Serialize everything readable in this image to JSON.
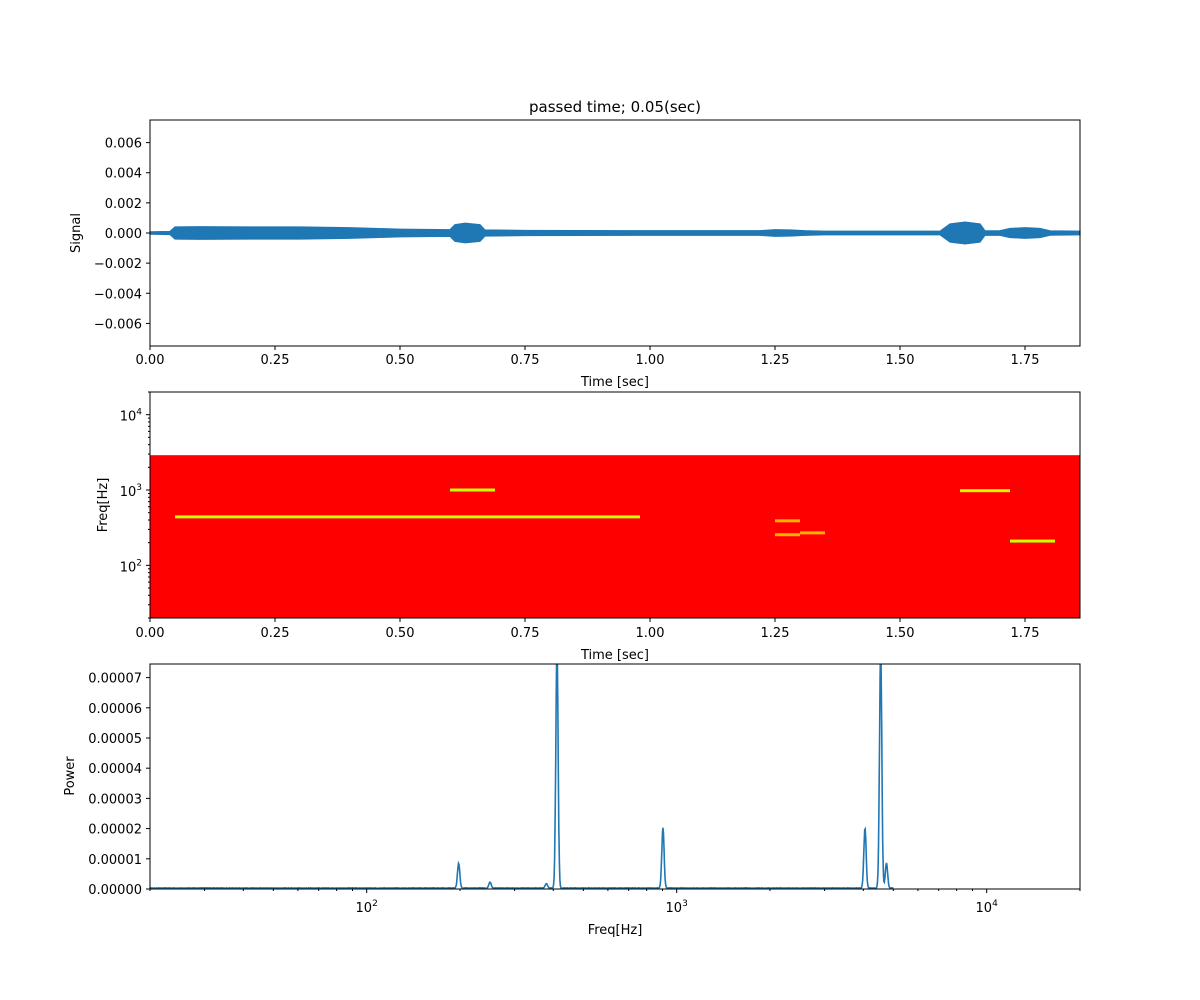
{
  "figure_title": "passed time; 0.05(sec)",
  "colors": {
    "line": "#1f77b4",
    "spectrogram_background": "#ff0000",
    "spectrogram_line_bright": "#c8ff00",
    "spectrogram_line_dim": "#ffb000"
  },
  "chart_data": [
    {
      "type": "area",
      "title": "passed time; 0.05(sec)",
      "xlabel": "Time [sec]",
      "ylabel": "Signal",
      "xlim": [
        0,
        1.86
      ],
      "ylim": [
        -0.0075,
        0.0075
      ],
      "xticks": [
        0,
        0.25,
        0.5,
        0.75,
        1.0,
        1.25,
        1.5,
        1.75
      ],
      "xtick_labels": [
        "0.00",
        "0.25",
        "0.50",
        "0.75",
        "1.00",
        "1.25",
        "1.50",
        "1.75"
      ],
      "yticks": [
        0.006,
        0.004,
        0.002,
        0,
        -0.002,
        -0.004,
        -0.006
      ],
      "ytick_labels": [
        "0.006",
        "0.004",
        "0.002",
        "0.000",
        "−0.002",
        "−0.004",
        "−0.006"
      ],
      "envelope": {
        "t": [
          0,
          0.04,
          0.05,
          0.1,
          0.2,
          0.3,
          0.4,
          0.45,
          0.5,
          0.6,
          0.61,
          0.63,
          0.66,
          0.67,
          0.75,
          1.0,
          1.22,
          1.25,
          1.28,
          1.31,
          1.35,
          1.58,
          1.6,
          1.63,
          1.66,
          1.67,
          1.7,
          1.72,
          1.75,
          1.78,
          1.8,
          1.86
        ],
        "amplitude": [
          8e-05,
          0.0001,
          0.0004,
          0.00042,
          0.0004,
          0.0004,
          0.00035,
          0.0003,
          0.00025,
          0.00022,
          0.00055,
          0.00065,
          0.00055,
          0.0002,
          0.00017,
          0.00015,
          0.00015,
          0.00022,
          0.0002,
          0.00015,
          0.00012,
          0.00012,
          0.0006,
          0.00072,
          0.0006,
          0.00014,
          0.00015,
          0.0003,
          0.00035,
          0.0003,
          0.00014,
          0.00012
        ]
      }
    },
    {
      "type": "heatmap",
      "xlabel": "Time [sec]",
      "ylabel": "Freq[Hz]",
      "xlim": [
        0,
        1.86
      ],
      "ylim": [
        20,
        20000
      ],
      "yscale": "log",
      "xticks": [
        0,
        0.25,
        0.5,
        0.75,
        1.0,
        1.25,
        1.5,
        1.75
      ],
      "xtick_labels": [
        "0.00",
        "0.25",
        "0.50",
        "0.75",
        "1.00",
        "1.25",
        "1.50",
        "1.75"
      ],
      "yticks": [
        100,
        1000,
        10000
      ],
      "ytick_labels": [
        {
          "base": "10",
          "exp": "2"
        },
        {
          "base": "10",
          "exp": "3"
        },
        {
          "base": "10",
          "exp": "4"
        }
      ],
      "freq_max_hz": 2900,
      "tones": [
        {
          "t0": 0.05,
          "t1": 0.98,
          "freq": 440,
          "level": "bright"
        },
        {
          "t0": 0.6,
          "t1": 0.69,
          "freq": 1000,
          "level": "bright"
        },
        {
          "t0": 1.25,
          "t1": 1.3,
          "freq": 390,
          "level": "dim"
        },
        {
          "t0": 1.25,
          "t1": 1.3,
          "freq": 255,
          "level": "dim"
        },
        {
          "t0": 1.3,
          "t1": 1.35,
          "freq": 270,
          "level": "dim"
        },
        {
          "t0": 1.62,
          "t1": 1.72,
          "freq": 980,
          "level": "bright"
        },
        {
          "t0": 1.72,
          "t1": 1.81,
          "freq": 210,
          "level": "bright"
        }
      ]
    },
    {
      "type": "line",
      "xlabel": "Freq[Hz]",
      "ylabel": "Power",
      "xlim": [
        20,
        20000
      ],
      "xscale": "log",
      "ylim": [
        0,
        7.45e-05
      ],
      "xticks": [
        100,
        1000,
        10000
      ],
      "xtick_labels": [
        {
          "base": "10",
          "exp": "2"
        },
        {
          "base": "10",
          "exp": "3"
        },
        {
          "base": "10",
          "exp": "4"
        }
      ],
      "yticks": [
        0,
        1e-05,
        2e-05,
        3e-05,
        4e-05,
        5e-05,
        6e-05,
        7e-05
      ],
      "ytick_labels": [
        "0.00000",
        "0.00001",
        "0.00002",
        "0.00003",
        "0.00004",
        "0.00005",
        "0.00006",
        "0.00007"
      ],
      "baseline_power": 4e-07,
      "data_end_hz": 5000,
      "peaks": [
        {
          "freq": 198,
          "power": 8.3e-06
        },
        {
          "freq": 250,
          "power": 2e-06
        },
        {
          "freq": 380,
          "power": 1.5e-06
        },
        {
          "freq": 411,
          "power": 8e-05
        },
        {
          "freq": 903,
          "power": 2e-05
        },
        {
          "freq": 4050,
          "power": 2e-05
        },
        {
          "freq": 4550,
          "power": 8e-05
        },
        {
          "freq": 4750,
          "power": 8.3e-06
        }
      ]
    }
  ]
}
